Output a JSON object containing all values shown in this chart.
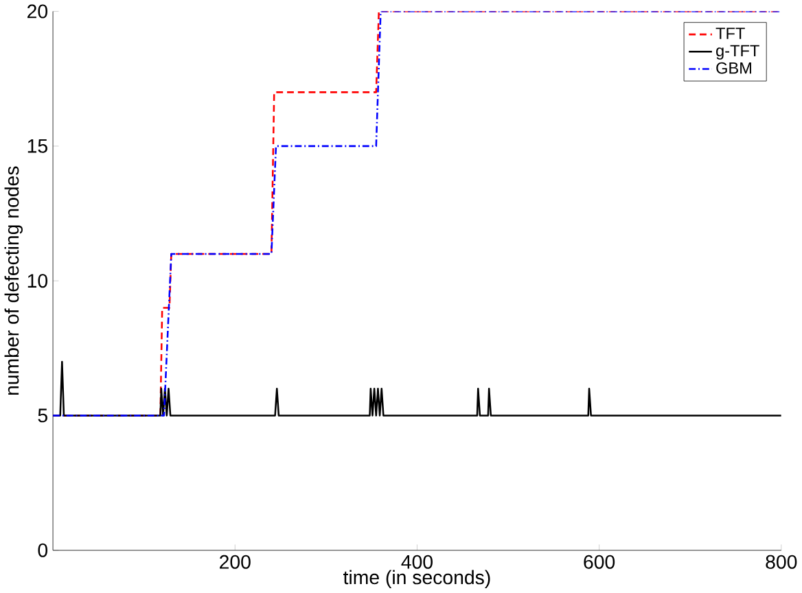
{
  "chart_data": {
    "type": "line",
    "xlabel": "time (in seconds)",
    "ylabel": "number of defecting nodes",
    "xlim": [
      0,
      800
    ],
    "ylim": [
      0,
      20
    ],
    "xticks": [
      200,
      400,
      600,
      800
    ],
    "yticks": [
      0,
      5,
      10,
      15,
      20
    ],
    "grid": false,
    "legend": "top right",
    "marker": "none",
    "series": [
      {
        "name": "TFT",
        "color": "#ff0000",
        "line_style": "dashed",
        "x": [
          0,
          118,
          120,
          128,
          130,
          240,
          243,
          355,
          358,
          800
        ],
        "values": [
          5,
          5,
          9,
          9,
          11,
          11,
          17,
          17,
          20,
          20
        ]
      },
      {
        "name": "g-TFT",
        "color": "#000000",
        "line_style": "solid",
        "x": [
          0,
          8,
          10,
          12,
          118,
          119,
          121,
          123,
          125,
          127,
          129,
          244,
          246,
          248,
          348,
          349,
          351,
          353,
          355,
          357,
          359,
          361,
          363,
          365,
          466,
          467,
          469,
          478,
          479,
          481,
          588,
          589,
          591,
          800
        ],
        "values": [
          5,
          5,
          7,
          5,
          5,
          6,
          5,
          6,
          5,
          6,
          5,
          5,
          6,
          5,
          5,
          6,
          5,
          6,
          5,
          6,
          5,
          6,
          5,
          5,
          5,
          6,
          5,
          5,
          6,
          5,
          5,
          6,
          5,
          5
        ]
      },
      {
        "name": "GBM",
        "color": "#0000ff",
        "line_style": "dashdot",
        "x": [
          0,
          122,
          130,
          240,
          245,
          355,
          360,
          800
        ],
        "values": [
          5,
          5,
          11,
          11,
          15,
          15,
          20,
          20
        ]
      }
    ]
  }
}
